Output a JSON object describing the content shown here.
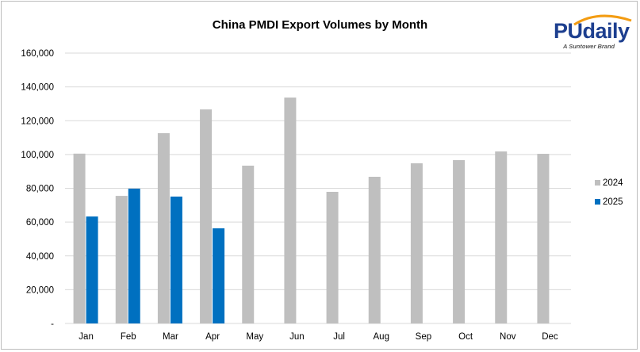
{
  "chart_data": {
    "type": "bar",
    "title": "China PMDI Export Volumes by Month",
    "xlabel": "",
    "ylabel": "",
    "ylim": [
      0,
      160000
    ],
    "yticks": [
      0,
      20000,
      40000,
      60000,
      80000,
      100000,
      120000,
      140000,
      160000
    ],
    "ytick_labels": [
      "-",
      "20,000",
      "40,000",
      "60,000",
      "80,000",
      "100,000",
      "120,000",
      "140,000",
      "160,000"
    ],
    "grid": true,
    "legend_position": "right",
    "categories": [
      "Jan",
      "Feb",
      "Mar",
      "Apr",
      "May",
      "Jun",
      "Jul",
      "Aug",
      "Sep",
      "Oct",
      "Nov",
      "Dec"
    ],
    "series": [
      {
        "name": "2024",
        "color": "#bfbfbf",
        "values": [
          100500,
          75500,
          112600,
          126700,
          93400,
          133700,
          77900,
          86800,
          94800,
          96700,
          101800,
          100400
        ]
      },
      {
        "name": "2025",
        "color": "#0070c0",
        "values": [
          63300,
          79800,
          75100,
          56300,
          null,
          null,
          null,
          null,
          null,
          null,
          null,
          null
        ]
      }
    ]
  },
  "logo": {
    "name": "PUdaily",
    "tagline": "A Suntower Brand"
  }
}
